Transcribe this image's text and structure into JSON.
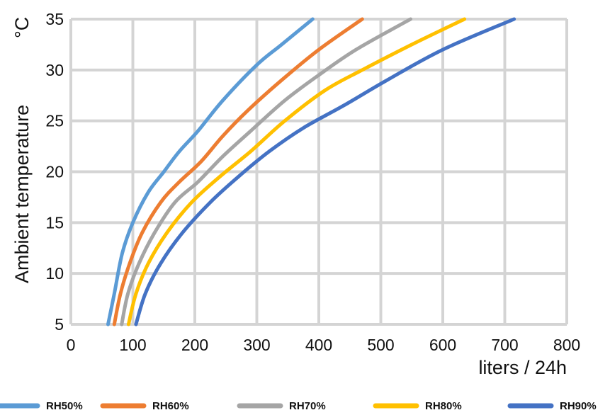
{
  "chart_data": {
    "type": "line",
    "xlabel": "liters / 24h",
    "ylabel": "Ambient temperature",
    "ylabel_unit": "°C",
    "xlim": [
      0,
      800
    ],
    "ylim": [
      5,
      35
    ],
    "xticks": [
      0,
      100,
      200,
      300,
      400,
      500,
      600,
      700,
      800
    ],
    "yticks": [
      5,
      10,
      15,
      20,
      25,
      30,
      35
    ],
    "xtick_labels": [
      "0",
      "100",
      "200",
      "300",
      "400",
      "500",
      "600",
      "700",
      "800"
    ],
    "ytick_labels": [
      "5",
      "10",
      "15",
      "20",
      "25",
      "30",
      "35"
    ],
    "grid": true,
    "legend_position": "bottom",
    "series": [
      {
        "name": "RH50%",
        "color": "#5b9bd5",
        "points": [
          [
            60,
            5
          ],
          [
            70,
            8
          ],
          [
            83,
            12
          ],
          [
            100,
            15
          ],
          [
            125,
            18
          ],
          [
            150,
            20
          ],
          [
            175,
            22
          ],
          [
            205,
            24
          ],
          [
            245,
            27
          ],
          [
            300,
            30.5
          ],
          [
            340,
            32.5
          ],
          [
            390,
            35
          ]
        ]
      },
      {
        "name": "RH60%",
        "color": "#ed7d31",
        "points": [
          [
            70,
            5
          ],
          [
            80,
            8
          ],
          [
            95,
            11
          ],
          [
            115,
            14
          ],
          [
            145,
            17
          ],
          [
            175,
            19
          ],
          [
            210,
            21
          ],
          [
            245,
            23.5
          ],
          [
            285,
            26
          ],
          [
            340,
            29
          ],
          [
            400,
            32
          ],
          [
            470,
            35
          ]
        ]
      },
      {
        "name": "RH70%",
        "color": "#a5a5a5",
        "points": [
          [
            82,
            5
          ],
          [
            92,
            8
          ],
          [
            110,
            11
          ],
          [
            135,
            14
          ],
          [
            168,
            17
          ],
          [
            205,
            19
          ],
          [
            245,
            21.5
          ],
          [
            290,
            24
          ],
          [
            345,
            27
          ],
          [
            400,
            29.5
          ],
          [
            460,
            32
          ],
          [
            548,
            35
          ]
        ]
      },
      {
        "name": "RH80%",
        "color": "#ffc000",
        "points": [
          [
            93,
            5
          ],
          [
            105,
            8
          ],
          [
            125,
            11
          ],
          [
            155,
            14
          ],
          [
            195,
            17
          ],
          [
            240,
            19.5
          ],
          [
            290,
            22
          ],
          [
            345,
            25
          ],
          [
            410,
            28
          ],
          [
            470,
            30
          ],
          [
            550,
            32.5
          ],
          [
            635,
            35
          ]
        ]
      },
      {
        "name": "RH90%",
        "color": "#4472c4",
        "points": [
          [
            105,
            5
          ],
          [
            120,
            8
          ],
          [
            145,
            11
          ],
          [
            180,
            14
          ],
          [
            225,
            17
          ],
          [
            270,
            19.5
          ],
          [
            320,
            22
          ],
          [
            375,
            24.3
          ],
          [
            440,
            26.5
          ],
          [
            510,
            29
          ],
          [
            600,
            32
          ],
          [
            715,
            35
          ]
        ]
      }
    ]
  }
}
